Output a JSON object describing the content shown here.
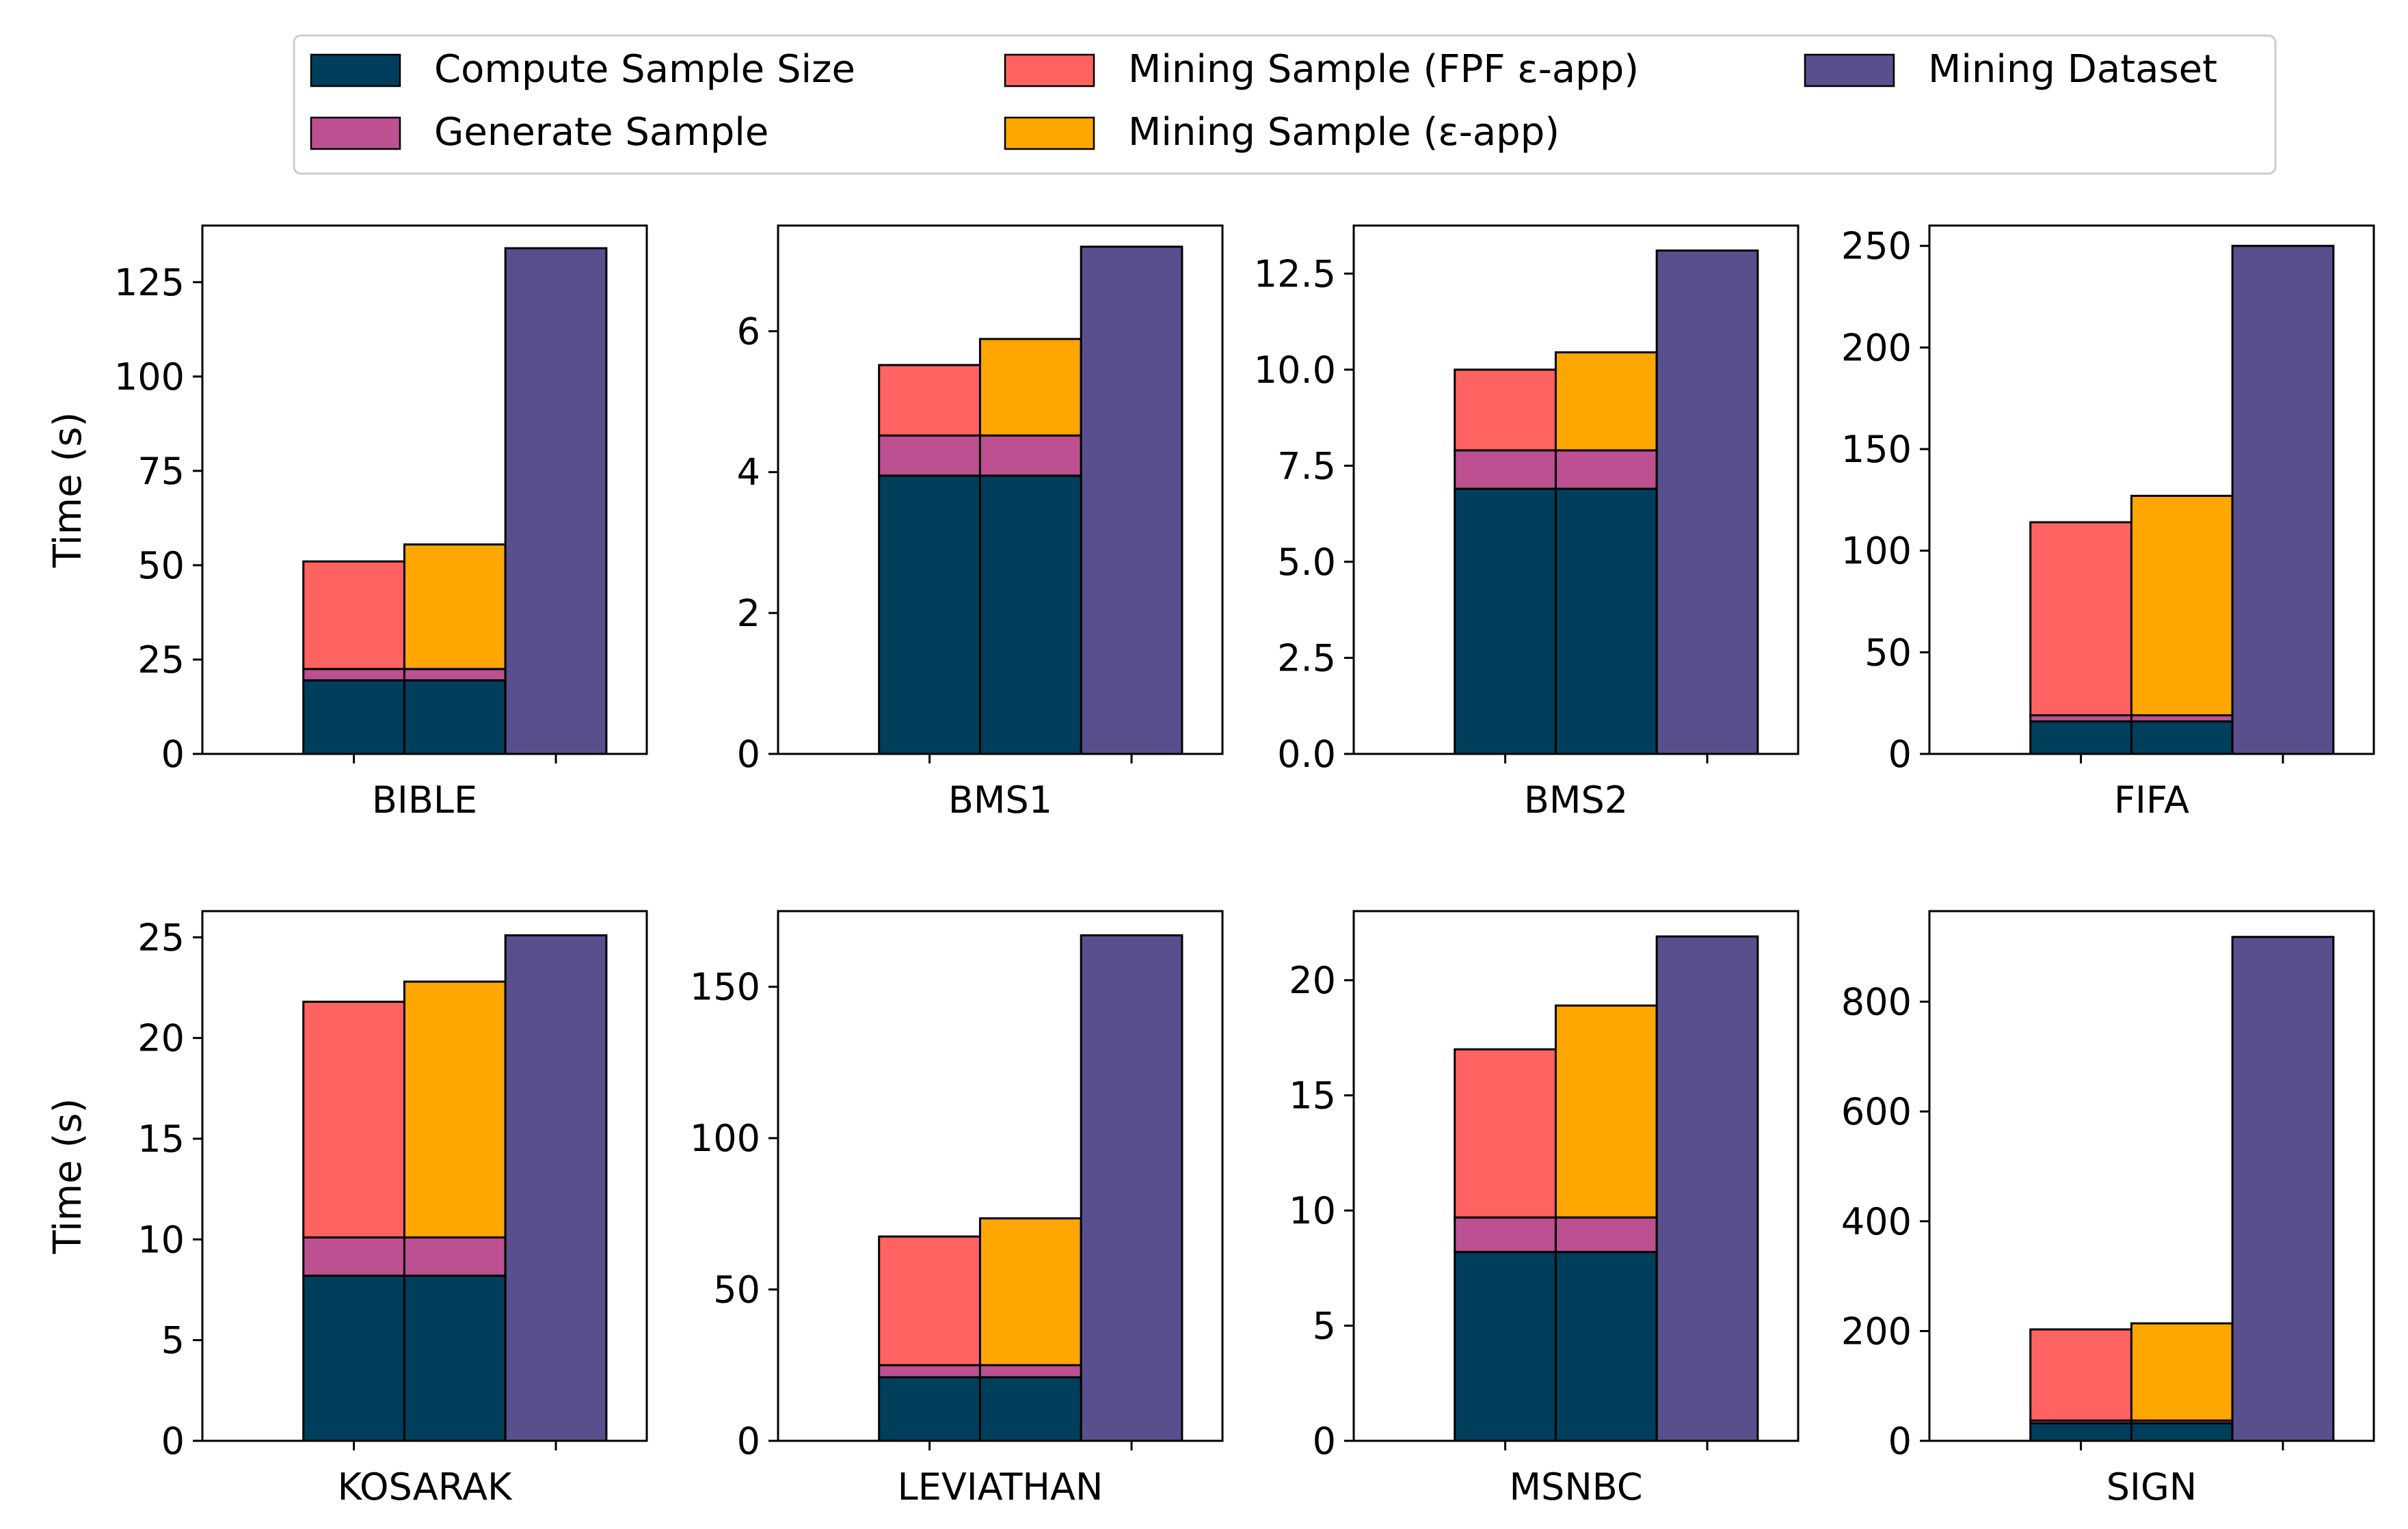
{
  "chart_data": {
    "type": "bar",
    "stacked": true,
    "ylabel": "Time (s)",
    "colors": {
      "compute": "#003f5c",
      "generate": "#bc5090",
      "fpf": "#ff6361",
      "eps": "#ffa600",
      "dataset": "#58508d"
    },
    "legend": [
      {
        "key": "compute",
        "label": "Compute Sample Size"
      },
      {
        "key": "generate",
        "label": "Generate Sample"
      },
      {
        "key": "fpf",
        "label": "Mining Sample (FPF ε-app)"
      },
      {
        "key": "eps",
        "label": "Mining Sample (ε-app)"
      },
      {
        "key": "dataset",
        "label": "Mining Dataset"
      }
    ],
    "panels": [
      {
        "name": "BIBLE",
        "ylim": [
          0,
          140
        ],
        "ticks": [
          0,
          25,
          50,
          75,
          100,
          125
        ],
        "tick_labels": [
          "0",
          "25",
          "50",
          "75",
          "100",
          "125"
        ],
        "compute": 19.5,
        "generate": 3,
        "fpf_mining": 28.5,
        "eps_mining": 33,
        "dataset": 134
      },
      {
        "name": "BMS1",
        "ylim": [
          0,
          7.5
        ],
        "ticks": [
          0,
          2,
          4,
          6
        ],
        "tick_labels": [
          "0",
          "2",
          "4",
          "6"
        ],
        "compute": 3.95,
        "generate": 0.57,
        "fpf_mining": 1.0,
        "eps_mining": 1.37,
        "dataset": 7.2
      },
      {
        "name": "BMS2",
        "ylim": [
          0,
          13.75
        ],
        "ticks": [
          0,
          2.5,
          5,
          7.5,
          10,
          12.5
        ],
        "tick_labels": [
          "0.0",
          "2.5",
          "5.0",
          "7.5",
          "10.0",
          "12.5"
        ],
        "compute": 6.9,
        "generate": 1.0,
        "fpf_mining": 2.1,
        "eps_mining": 2.55,
        "dataset": 13.1
      },
      {
        "name": "FIFA",
        "ylim": [
          0,
          260
        ],
        "ticks": [
          0,
          50,
          100,
          150,
          200,
          250
        ],
        "tick_labels": [
          "0",
          "50",
          "100",
          "150",
          "200",
          "250"
        ],
        "compute": 16,
        "generate": 3,
        "fpf_mining": 95,
        "eps_mining": 108,
        "dataset": 250
      },
      {
        "name": "KOSARAK",
        "ylim": [
          0,
          26.3
        ],
        "ticks": [
          0,
          5,
          10,
          15,
          20,
          25
        ],
        "tick_labels": [
          "0",
          "5",
          "10",
          "15",
          "20",
          "25"
        ],
        "compute": 8.2,
        "generate": 1.9,
        "fpf_mining": 11.7,
        "eps_mining": 12.7,
        "dataset": 25.1
      },
      {
        "name": "LEVIATHAN",
        "ylim": [
          0,
          175
        ],
        "ticks": [
          0,
          50,
          100,
          150
        ],
        "tick_labels": [
          "0",
          "50",
          "100",
          "150"
        ],
        "compute": 21,
        "generate": 4,
        "fpf_mining": 42.5,
        "eps_mining": 48.5,
        "dataset": 167
      },
      {
        "name": "MSNBC",
        "ylim": [
          0,
          23
        ],
        "ticks": [
          0,
          5,
          10,
          15,
          20
        ],
        "tick_labels": [
          "0",
          "5",
          "10",
          "15",
          "20"
        ],
        "compute": 8.2,
        "generate": 1.5,
        "fpf_mining": 7.3,
        "eps_mining": 9.2,
        "dataset": 21.9
      },
      {
        "name": "SIGN",
        "ylim": [
          0,
          965
        ],
        "ticks": [
          0,
          200,
          400,
          600,
          800
        ],
        "tick_labels": [
          "0",
          "200",
          "400",
          "600",
          "800"
        ],
        "compute": 32,
        "generate": 5,
        "fpf_mining": 166,
        "eps_mining": 177,
        "dataset": 918
      }
    ]
  }
}
